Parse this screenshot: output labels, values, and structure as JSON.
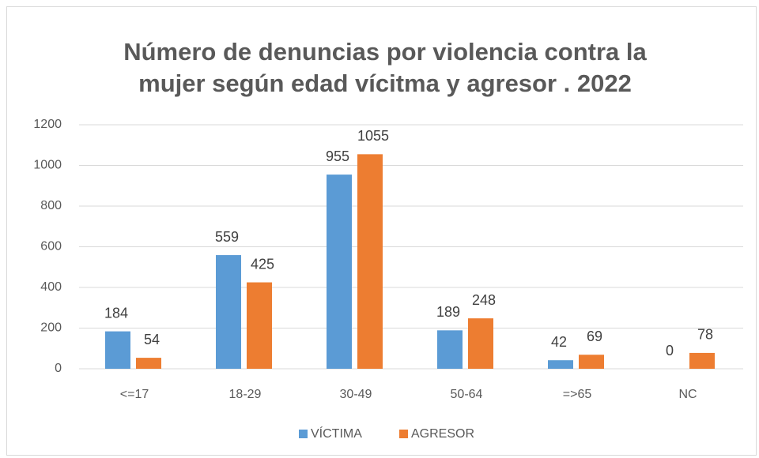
{
  "chart_data": {
    "type": "bar",
    "title": [
      "Número de denuncias por violencia contra la",
      "mujer según edad vícitma y agresor . 2022"
    ],
    "categories": [
      "<=17",
      "18-29",
      "30-49",
      "50-64",
      "=>65",
      "NC"
    ],
    "series": [
      {
        "name": "VÍCTIMA",
        "color": "#5b9bd5",
        "values": [
          184,
          559,
          955,
          189,
          42,
          0
        ]
      },
      {
        "name": "AGRESOR",
        "color": "#ed7d31",
        "values": [
          54,
          425,
          1055,
          248,
          69,
          78
        ]
      }
    ],
    "ylim": [
      0,
      1200
    ],
    "yticks": [
      0,
      200,
      400,
      600,
      800,
      1000,
      1200
    ],
    "grid": true,
    "legend": "bottom"
  }
}
